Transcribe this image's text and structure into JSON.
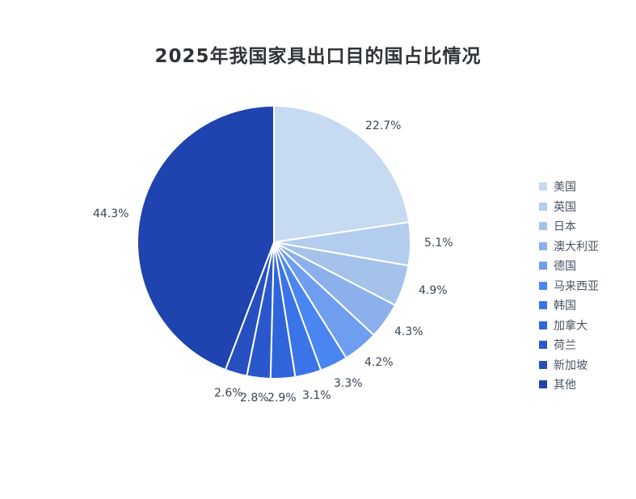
{
  "chart_data": {
    "type": "pie",
    "title": "2025年我国家具出口目的国占比情况",
    "categories": [
      "美国",
      "英国",
      "日本",
      "澳大利亚",
      "德国",
      "马来西亚",
      "韩国",
      "加拿大",
      "荷兰",
      "新加坡",
      "其他"
    ],
    "values": [
      22.7,
      5.1,
      4.9,
      4.3,
      4.2,
      3.3,
      3.1,
      2.9,
      2.8,
      2.6,
      44.3
    ],
    "labels": [
      "22.7%",
      "5.1%",
      "4.9%",
      "4.3%",
      "4.2%",
      "3.3%",
      "3.1%",
      "2.9%",
      "2.8%",
      "2.6%",
      "44.3%"
    ],
    "colors": [
      "#c6daf1",
      "#b3cdee",
      "#a5c3ea",
      "#8cb0ec",
      "#6f9ef0",
      "#4a86f2",
      "#3a74e8",
      "#2f64da",
      "#2a58cc",
      "#2650c0",
      "#1f44b0"
    ],
    "start_angle": "12 o'clock",
    "direction": "clockwise",
    "legend_position": "right"
  },
  "legend": {
    "items": [
      "美国",
      "英国",
      "日本",
      "澳大利亚",
      "德国",
      "马来西亚",
      "韩国",
      "加拿大",
      "荷兰",
      "新加坡",
      "其他"
    ]
  }
}
